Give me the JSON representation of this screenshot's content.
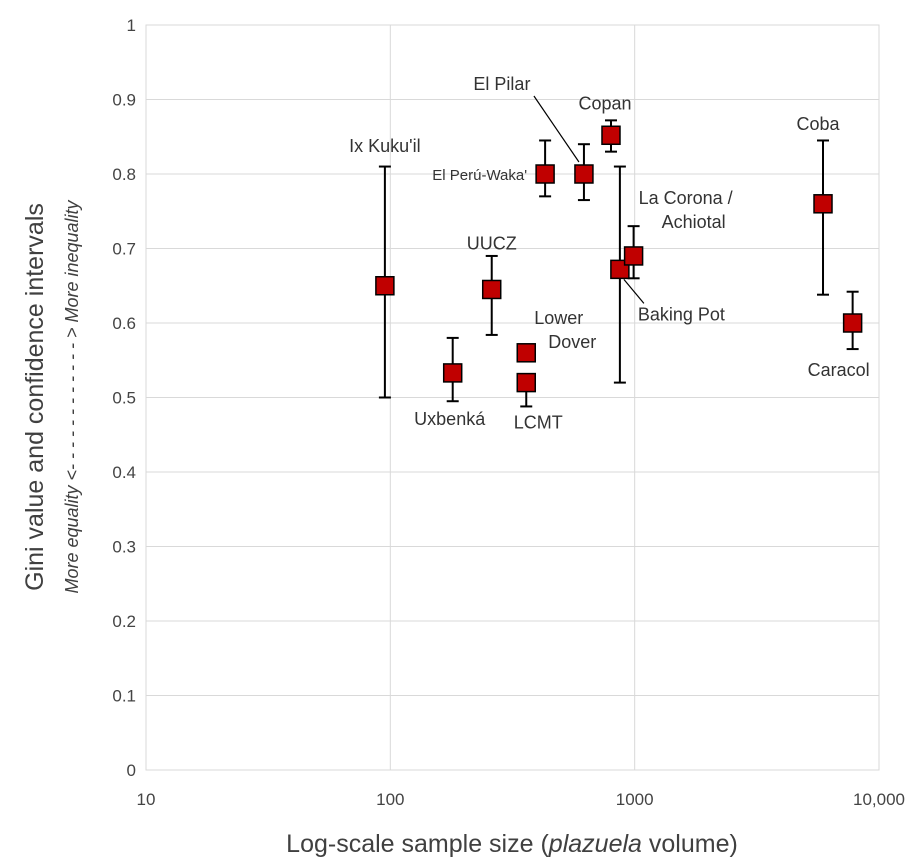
{
  "chart_data": {
    "type": "scatter",
    "x_scale": "log",
    "xlim": [
      10,
      10000
    ],
    "ylim": [
      0,
      1
    ],
    "grid": true,
    "xlabel": {
      "prefix": "Log-scale sample size (",
      "italic": "plazuela",
      "suffix": " volume)"
    },
    "ylabel": {
      "main": "Gini value and confidence intervals",
      "sub": "More equality <- - - - - - - - - - - - > More inequality"
    },
    "x_ticks": [
      {
        "value": 10,
        "label": "10"
      },
      {
        "value": 100,
        "label": "100"
      },
      {
        "value": 1000,
        "label": "1000"
      },
      {
        "value": 10000,
        "label": "10,000"
      }
    ],
    "y_ticks": [
      {
        "value": 0,
        "label": "0"
      },
      {
        "value": 0.1,
        "label": "0.1"
      },
      {
        "value": 0.2,
        "label": "0.2"
      },
      {
        "value": 0.3,
        "label": "0.3"
      },
      {
        "value": 0.4,
        "label": "0.4"
      },
      {
        "value": 0.5,
        "label": "0.5"
      },
      {
        "value": 0.6,
        "label": "0.6"
      },
      {
        "value": 0.7,
        "label": "0.7"
      },
      {
        "value": 0.8,
        "label": "0.8"
      },
      {
        "value": 0.9,
        "label": "0.9"
      },
      {
        "value": 1,
        "label": "1"
      }
    ],
    "marker_color": "#c00000",
    "points": [
      {
        "label": "Ix Kuku'il",
        "x": 95,
        "y": 0.65,
        "ci_low": 0.5,
        "ci_high": 0.81
      },
      {
        "label": "Uxbenká",
        "x": 180,
        "y": 0.533,
        "ci_low": 0.495,
        "ci_high": 0.58
      },
      {
        "label": "UUCZ",
        "x": 260,
        "y": 0.645,
        "ci_low": 0.584,
        "ci_high": 0.69
      },
      {
        "label": "Lower Dover",
        "x": 360,
        "y": 0.56,
        "ci_low": null,
        "ci_high": null
      },
      {
        "label": "LCMT",
        "x": 360,
        "y": 0.52,
        "ci_low": 0.488,
        "ci_high": null
      },
      {
        "label": "El Perú-Waka'",
        "x": 430,
        "y": 0.8,
        "ci_low": 0.77,
        "ci_high": 0.845
      },
      {
        "label": "El Pilar",
        "x": 620,
        "y": 0.8,
        "ci_low": 0.765,
        "ci_high": 0.84
      },
      {
        "label": "Copan",
        "x": 800,
        "y": 0.852,
        "ci_low": 0.83,
        "ci_high": 0.872
      },
      {
        "label": "Baking Pot",
        "x": 870,
        "y": 0.672,
        "ci_low": 0.52,
        "ci_high": 0.81
      },
      {
        "label": "La Corona / Achiotal",
        "x": 990,
        "y": 0.69,
        "ci_low": 0.66,
        "ci_high": 0.73
      },
      {
        "label": "Coba",
        "x": 5900,
        "y": 0.76,
        "ci_low": 0.638,
        "ci_high": 0.845
      },
      {
        "label": "Caracol",
        "x": 7800,
        "y": 0.6,
        "ci_low": 0.565,
        "ci_high": 0.642
      }
    ]
  }
}
